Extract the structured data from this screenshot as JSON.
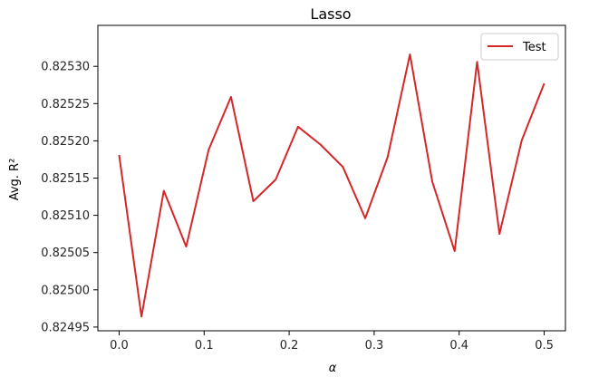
{
  "chart_data": {
    "type": "line",
    "title": "Lasso",
    "xlabel": "α",
    "ylabel": "Avg. R²",
    "xlim": [
      -0.025,
      0.525
    ],
    "ylim": [
      0.824945,
      0.825355
    ],
    "xticks": [
      0.0,
      0.1,
      0.2,
      0.3,
      0.4,
      0.5
    ],
    "xtick_labels": [
      "0.0",
      "0.1",
      "0.2",
      "0.3",
      "0.4",
      "0.5"
    ],
    "yticks": [
      0.82495,
      0.825,
      0.82505,
      0.8251,
      0.82515,
      0.8252,
      0.82525,
      0.8253
    ],
    "ytick_labels": [
      "0.82495",
      "0.82500",
      "0.82505",
      "0.82510",
      "0.82515",
      "0.82520",
      "0.82525",
      "0.82530"
    ],
    "legend": {
      "position": "top-right",
      "entries": [
        "Test"
      ]
    },
    "grid": false,
    "series": [
      {
        "name": "Test",
        "color": "#d62728",
        "x": [
          0.0,
          0.0263,
          0.0526,
          0.0789,
          0.1053,
          0.1316,
          0.1579,
          0.1842,
          0.2105,
          0.2368,
          0.2632,
          0.2895,
          0.3158,
          0.3421,
          0.3684,
          0.3947,
          0.4211,
          0.4474,
          0.4737,
          0.5
        ],
        "y": [
          0.825181,
          0.824964,
          0.825133,
          0.825058,
          0.825188,
          0.825259,
          0.825119,
          0.825148,
          0.825219,
          0.825195,
          0.825165,
          0.825096,
          0.825178,
          0.825316,
          0.825145,
          0.825052,
          0.825306,
          0.825075,
          0.825201,
          0.825277
        ]
      }
    ]
  }
}
